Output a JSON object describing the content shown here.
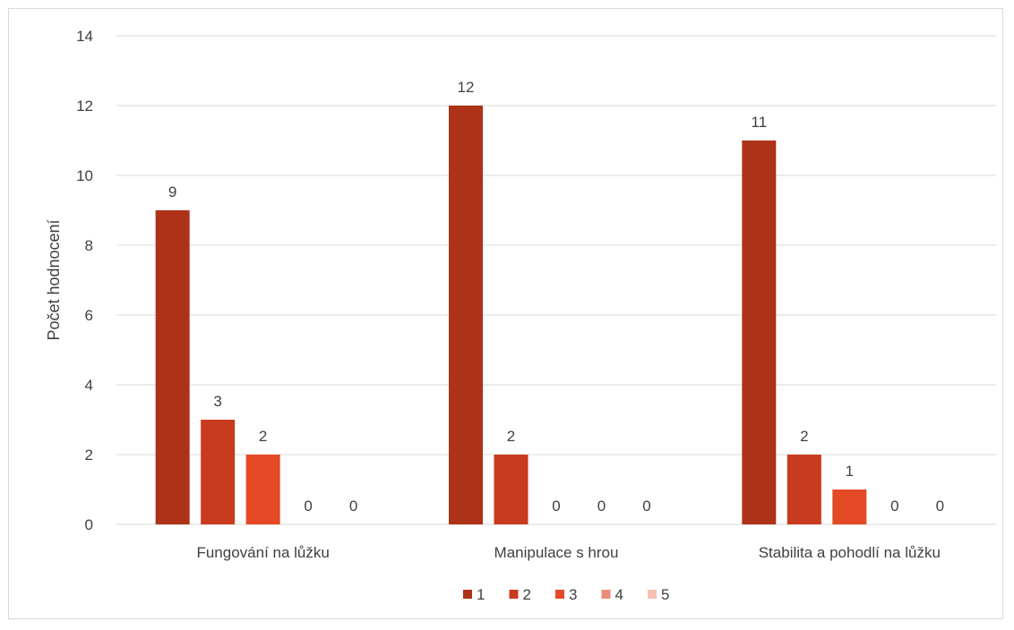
{
  "chart_data": {
    "type": "bar",
    "title": "",
    "xlabel": "",
    "ylabel": "Počet hodnocení",
    "ylim": [
      0,
      14
    ],
    "yticks": [
      0,
      2,
      4,
      6,
      8,
      10,
      12,
      14
    ],
    "grid": true,
    "legend_position": "bottom",
    "categories": [
      "Fungování na lůžku",
      "Manipulace s hrou",
      "Stabilita a pohodlí na lůžku"
    ],
    "series": [
      {
        "name": "1",
        "color": "#ad3218",
        "values": [
          9,
          12,
          11
        ]
      },
      {
        "name": "2",
        "color": "#c93b1e",
        "values": [
          3,
          2,
          2
        ]
      },
      {
        "name": "3",
        "color": "#e44a26",
        "values": [
          2,
          0,
          1
        ]
      },
      {
        "name": "4",
        "color": "#eb8c7a",
        "values": [
          0,
          0,
          0
        ]
      },
      {
        "name": "5",
        "color": "#f5bfb3",
        "values": [
          0,
          0,
          0
        ]
      }
    ]
  }
}
